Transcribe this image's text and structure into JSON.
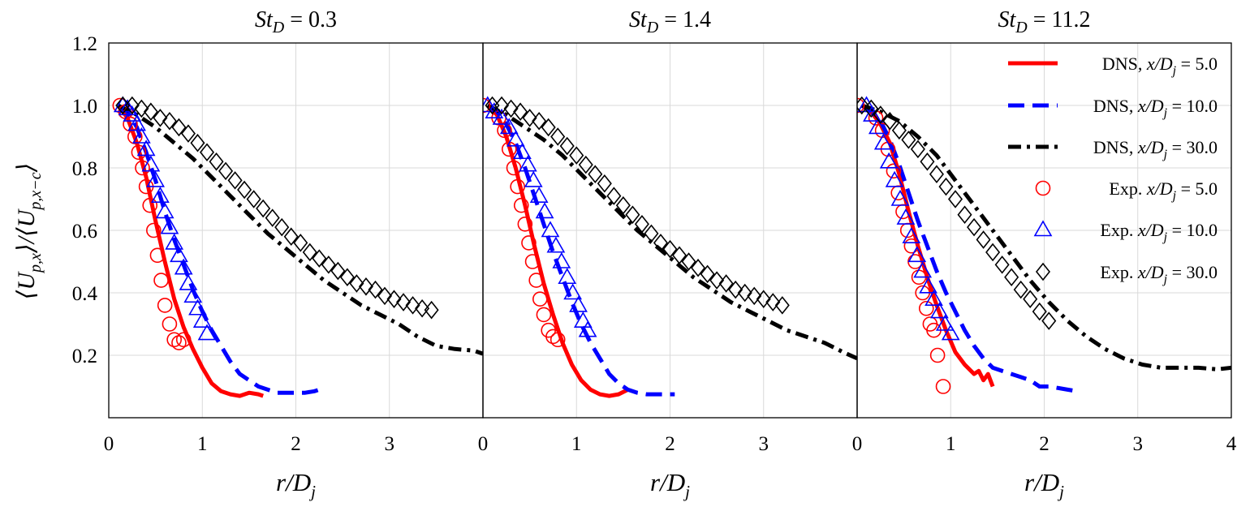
{
  "ylabel": "⟨U_{p,x}⟩/⟨U_{p,x−c}⟩",
  "legend": {
    "placement": "top-right (third panel)",
    "entries": [
      {
        "label": "DNS, x/D_j = 5.0",
        "prefix": "DNS, ",
        "var": "x/D",
        "sub": "j",
        "val": " = 5.0",
        "color": "#ff0000",
        "style": "solid"
      },
      {
        "label": "DNS, x/D_j = 10.0",
        "prefix": "DNS, ",
        "var": "x/D",
        "sub": "j",
        "val": " = 10.0",
        "color": "#0000ff",
        "style": "dashed"
      },
      {
        "label": "DNS, x/D_j = 30.0",
        "prefix": "DNS, ",
        "var": "x/D",
        "sub": "j",
        "val": " = 30.0",
        "color": "#000000",
        "style": "dashdot"
      },
      {
        "label": "Exp. x/D_j = 5.0",
        "prefix": "Exp. ",
        "var": "x/D",
        "sub": "j",
        "val": " = 5.0",
        "color": "#ff0000",
        "marker": "circle"
      },
      {
        "label": "Exp. x/D_j = 10.0",
        "prefix": "Exp. ",
        "var": "x/D",
        "sub": "j",
        "val": " = 10.0",
        "color": "#0000ff",
        "marker": "triangle"
      },
      {
        "label": "Exp. x/D_j = 30.0",
        "prefix": "Exp. ",
        "var": "x/D",
        "sub": "j",
        "val": " = 30.0",
        "color": "#000000",
        "marker": "diamond"
      }
    ]
  },
  "chart_data": [
    {
      "type": "line",
      "title": "St_D = 0.3",
      "title_var": "St",
      "title_sub": "D",
      "title_val": " = 0.3",
      "xlabel": "r/D_j",
      "xlabel_var": "r/D",
      "xlabel_sub": "j",
      "xlim": [
        0,
        4
      ],
      "ylim": [
        0,
        1.2
      ],
      "xticks": [
        "0",
        "1",
        "2",
        "3"
      ],
      "yticks": [
        "0.2",
        "0.4",
        "0.6",
        "0.8",
        "1.0",
        "1.2"
      ],
      "grid": true,
      "series": [
        {
          "kind": "dns",
          "color": "#ff0000",
          "style": "solid",
          "x": [
            0.1,
            0.2,
            0.3,
            0.4,
            0.5,
            0.6,
            0.7,
            0.8,
            0.9,
            1.0,
            1.1,
            1.2,
            1.3,
            1.4,
            1.5,
            1.6,
            1.65
          ],
          "y": [
            1.0,
            0.96,
            0.88,
            0.77,
            0.63,
            0.5,
            0.38,
            0.29,
            0.22,
            0.16,
            0.11,
            0.085,
            0.075,
            0.07,
            0.08,
            0.075,
            0.07
          ]
        },
        {
          "kind": "dns",
          "color": "#0000ff",
          "style": "dashed",
          "x": [
            0.1,
            0.2,
            0.3,
            0.4,
            0.5,
            0.6,
            0.7,
            0.8,
            0.9,
            1.0,
            1.1,
            1.2,
            1.3,
            1.4,
            1.5,
            1.6,
            1.7,
            1.8,
            1.9,
            2.0,
            2.1,
            2.2,
            2.3
          ],
          "y": [
            1.0,
            0.98,
            0.93,
            0.85,
            0.76,
            0.66,
            0.57,
            0.49,
            0.41,
            0.34,
            0.28,
            0.23,
            0.18,
            0.14,
            0.12,
            0.1,
            0.09,
            0.08,
            0.08,
            0.08,
            0.08,
            0.085,
            0.095
          ]
        },
        {
          "kind": "dns",
          "color": "#000000",
          "style": "dashdot",
          "x": [
            0.1,
            0.3,
            0.5,
            0.7,
            0.9,
            1.1,
            1.3,
            1.5,
            1.7,
            1.9,
            2.1,
            2.3,
            2.5,
            2.7,
            2.9,
            3.1,
            3.3,
            3.5,
            3.7,
            3.9,
            4.0
          ],
          "y": [
            1.0,
            0.97,
            0.93,
            0.88,
            0.83,
            0.77,
            0.71,
            0.65,
            0.59,
            0.54,
            0.49,
            0.44,
            0.4,
            0.36,
            0.33,
            0.3,
            0.26,
            0.23,
            0.22,
            0.215,
            0.205
          ]
        },
        {
          "kind": "exp",
          "color": "#ff0000",
          "marker": "circle",
          "x": [
            0.12,
            0.18,
            0.23,
            0.28,
            0.32,
            0.36,
            0.4,
            0.44,
            0.48,
            0.52,
            0.56,
            0.6,
            0.65,
            0.7,
            0.75,
            0.8
          ],
          "y": [
            1.0,
            0.98,
            0.94,
            0.9,
            0.85,
            0.8,
            0.74,
            0.68,
            0.6,
            0.52,
            0.44,
            0.36,
            0.3,
            0.25,
            0.24,
            0.25
          ]
        },
        {
          "kind": "exp",
          "color": "#0000ff",
          "marker": "triangle",
          "x": [
            0.15,
            0.2,
            0.25,
            0.3,
            0.35,
            0.4,
            0.45,
            0.5,
            0.55,
            0.6,
            0.65,
            0.7,
            0.75,
            0.8,
            0.85,
            0.9,
            0.95,
            1.0,
            1.05
          ],
          "y": [
            1.0,
            0.99,
            0.97,
            0.94,
            0.9,
            0.86,
            0.81,
            0.76,
            0.71,
            0.66,
            0.61,
            0.56,
            0.52,
            0.48,
            0.43,
            0.39,
            0.35,
            0.31,
            0.27
          ]
        },
        {
          "kind": "exp",
          "color": "#000000",
          "marker": "diamond",
          "x": [
            0.15,
            0.25,
            0.35,
            0.45,
            0.55,
            0.65,
            0.75,
            0.85,
            0.95,
            1.05,
            1.15,
            1.25,
            1.35,
            1.45,
            1.55,
            1.65,
            1.75,
            1.85,
            1.95,
            2.05,
            2.15,
            2.25,
            2.35,
            2.45,
            2.55,
            2.65,
            2.75,
            2.85,
            2.95,
            3.05,
            3.15,
            3.25,
            3.35,
            3.45
          ],
          "y": [
            1.0,
            1.0,
            0.99,
            0.98,
            0.96,
            0.95,
            0.93,
            0.91,
            0.88,
            0.85,
            0.82,
            0.79,
            0.76,
            0.73,
            0.7,
            0.67,
            0.64,
            0.61,
            0.58,
            0.56,
            0.53,
            0.51,
            0.49,
            0.47,
            0.45,
            0.43,
            0.42,
            0.41,
            0.39,
            0.38,
            0.37,
            0.36,
            0.35,
            0.345
          ]
        }
      ]
    },
    {
      "type": "line",
      "title": "St_D = 1.4",
      "title_var": "St",
      "title_sub": "D",
      "title_val": " = 1.4",
      "xlabel": "r/D_j",
      "xlabel_var": "r/D",
      "xlabel_sub": "j",
      "xlim": [
        0,
        4
      ],
      "ylim": [
        0,
        1.2
      ],
      "xticks": [
        "0",
        "1",
        "2",
        "3"
      ],
      "yticks": [],
      "grid": true,
      "series": [
        {
          "kind": "dns",
          "color": "#ff0000",
          "style": "solid",
          "x": [
            0.05,
            0.15,
            0.25,
            0.35,
            0.45,
            0.55,
            0.65,
            0.75,
            0.85,
            0.95,
            1.05,
            1.15,
            1.25,
            1.35,
            1.45,
            1.55
          ],
          "y": [
            1.0,
            0.97,
            0.9,
            0.8,
            0.68,
            0.55,
            0.43,
            0.33,
            0.24,
            0.17,
            0.12,
            0.09,
            0.075,
            0.07,
            0.075,
            0.09
          ]
        },
        {
          "kind": "dns",
          "color": "#0000ff",
          "style": "dashed",
          "x": [
            0.05,
            0.15,
            0.25,
            0.35,
            0.45,
            0.55,
            0.65,
            0.75,
            0.85,
            0.95,
            1.05,
            1.15,
            1.25,
            1.35,
            1.45,
            1.55,
            1.65,
            1.75,
            1.85,
            1.95,
            2.05
          ],
          "y": [
            1.0,
            0.98,
            0.94,
            0.88,
            0.8,
            0.71,
            0.62,
            0.53,
            0.45,
            0.37,
            0.3,
            0.24,
            0.19,
            0.14,
            0.11,
            0.09,
            0.08,
            0.075,
            0.075,
            0.075,
            0.075
          ]
        },
        {
          "kind": "dns",
          "color": "#000000",
          "style": "dashdot",
          "x": [
            0.05,
            0.25,
            0.45,
            0.65,
            0.85,
            1.05,
            1.25,
            1.45,
            1.65,
            1.85,
            2.05,
            2.25,
            2.45,
            2.65,
            2.85,
            3.05,
            3.25,
            3.45,
            3.65,
            3.85,
            4.0
          ],
          "y": [
            1.0,
            0.97,
            0.93,
            0.89,
            0.84,
            0.78,
            0.72,
            0.66,
            0.6,
            0.55,
            0.5,
            0.45,
            0.41,
            0.37,
            0.34,
            0.31,
            0.28,
            0.26,
            0.24,
            0.21,
            0.19
          ]
        },
        {
          "kind": "exp",
          "color": "#ff0000",
          "marker": "circle",
          "x": [
            0.0,
            0.17,
            0.23,
            0.28,
            0.33,
            0.37,
            0.41,
            0.45,
            0.49,
            0.53,
            0.57,
            0.61,
            0.65,
            0.7,
            0.75,
            0.8
          ],
          "y": [
            1.0,
            0.96,
            0.92,
            0.86,
            0.8,
            0.74,
            0.68,
            0.62,
            0.56,
            0.5,
            0.44,
            0.38,
            0.33,
            0.28,
            0.26,
            0.25
          ]
        },
        {
          "kind": "exp",
          "color": "#0000ff",
          "marker": "triangle",
          "x": [
            0.05,
            0.12,
            0.2,
            0.28,
            0.35,
            0.42,
            0.48,
            0.54,
            0.6,
            0.66,
            0.72,
            0.78,
            0.84,
            0.9,
            0.96,
            1.02,
            1.07,
            1.12
          ],
          "y": [
            1.0,
            0.98,
            0.96,
            0.93,
            0.89,
            0.85,
            0.81,
            0.76,
            0.71,
            0.66,
            0.6,
            0.55,
            0.5,
            0.45,
            0.4,
            0.36,
            0.31,
            0.28
          ]
        },
        {
          "kind": "exp",
          "color": "#000000",
          "marker": "diamond",
          "x": [
            0.1,
            0.2,
            0.3,
            0.4,
            0.5,
            0.6,
            0.7,
            0.8,
            0.9,
            1.0,
            1.1,
            1.2,
            1.3,
            1.4,
            1.5,
            1.6,
            1.7,
            1.8,
            1.9,
            2.0,
            2.1,
            2.2,
            2.3,
            2.4,
            2.5,
            2.6,
            2.7,
            2.8,
            2.9,
            3.0,
            3.1,
            3.2
          ],
          "y": [
            1.0,
            1.0,
            0.99,
            0.98,
            0.96,
            0.95,
            0.93,
            0.9,
            0.87,
            0.84,
            0.81,
            0.78,
            0.75,
            0.71,
            0.68,
            0.65,
            0.62,
            0.59,
            0.56,
            0.54,
            0.52,
            0.5,
            0.48,
            0.46,
            0.44,
            0.43,
            0.41,
            0.4,
            0.39,
            0.38,
            0.37,
            0.36
          ]
        }
      ]
    },
    {
      "type": "line",
      "title": "St_D = 11.2",
      "title_var": "St",
      "title_sub": "D",
      "title_val": " = 11.2",
      "xlabel": "r/D_j",
      "xlabel_var": "r/D",
      "xlabel_sub": "j",
      "xlim": [
        0,
        4
      ],
      "ylim": [
        0,
        1.2
      ],
      "xticks": [
        "0",
        "1",
        "2",
        "3",
        "4"
      ],
      "yticks": [],
      "grid": true,
      "series": [
        {
          "kind": "dns",
          "color": "#ff0000",
          "style": "solid",
          "x": [
            0.05,
            0.15,
            0.25,
            0.35,
            0.45,
            0.55,
            0.65,
            0.75,
            0.85,
            0.95,
            1.05,
            1.15,
            1.25,
            1.3,
            1.35,
            1.4,
            1.45
          ],
          "y": [
            1.0,
            0.98,
            0.94,
            0.88,
            0.78,
            0.66,
            0.55,
            0.45,
            0.36,
            0.28,
            0.21,
            0.17,
            0.14,
            0.15,
            0.12,
            0.14,
            0.1
          ]
        },
        {
          "kind": "dns",
          "color": "#0000ff",
          "style": "dashed",
          "x": [
            0.05,
            0.15,
            0.25,
            0.35,
            0.45,
            0.55,
            0.65,
            0.75,
            0.85,
            0.95,
            1.05,
            1.15,
            1.25,
            1.35,
            1.45,
            1.55,
            1.65,
            1.75,
            1.85,
            1.95,
            2.05,
            2.15,
            2.25,
            2.35
          ],
          "y": [
            1.0,
            0.98,
            0.95,
            0.89,
            0.81,
            0.72,
            0.63,
            0.55,
            0.47,
            0.4,
            0.34,
            0.28,
            0.23,
            0.19,
            0.16,
            0.15,
            0.14,
            0.13,
            0.12,
            0.1,
            0.1,
            0.095,
            0.09,
            0.085
          ]
        },
        {
          "kind": "dns",
          "color": "#000000",
          "style": "dashdot",
          "x": [
            0.05,
            0.25,
            0.45,
            0.65,
            0.85,
            1.05,
            1.25,
            1.45,
            1.65,
            1.85,
            2.05,
            2.25,
            2.45,
            2.65,
            2.85,
            3.05,
            3.25,
            3.45,
            3.65,
            3.85,
            4.0
          ],
          "y": [
            1.0,
            0.98,
            0.95,
            0.9,
            0.84,
            0.76,
            0.68,
            0.6,
            0.52,
            0.44,
            0.37,
            0.31,
            0.26,
            0.22,
            0.19,
            0.17,
            0.16,
            0.16,
            0.16,
            0.155,
            0.16
          ]
        },
        {
          "kind": "exp",
          "color": "#ff0000",
          "marker": "circle",
          "x": [
            0.0,
            0.2,
            0.27,
            0.33,
            0.39,
            0.44,
            0.49,
            0.54,
            0.58,
            0.62,
            0.66,
            0.7,
            0.74,
            0.78,
            0.82,
            0.86,
            0.92
          ],
          "y": [
            1.0,
            0.96,
            0.92,
            0.86,
            0.79,
            0.72,
            0.66,
            0.6,
            0.55,
            0.5,
            0.45,
            0.4,
            0.35,
            0.3,
            0.28,
            0.2,
            0.1
          ]
        },
        {
          "kind": "exp",
          "color": "#0000ff",
          "marker": "triangle",
          "x": [
            0.1,
            0.16,
            0.22,
            0.28,
            0.34,
            0.4,
            0.46,
            0.52,
            0.58,
            0.64,
            0.7,
            0.76,
            0.82,
            0.88,
            0.94,
            1.0
          ],
          "y": [
            1.0,
            0.97,
            0.93,
            0.88,
            0.82,
            0.76,
            0.7,
            0.64,
            0.58,
            0.52,
            0.47,
            0.42,
            0.38,
            0.34,
            0.3,
            0.27
          ]
        },
        {
          "kind": "exp",
          "color": "#000000",
          "marker": "diamond",
          "x": [
            0.05,
            0.15,
            0.25,
            0.35,
            0.45,
            0.55,
            0.65,
            0.75,
            0.85,
            0.95,
            1.05,
            1.15,
            1.25,
            1.35,
            1.45,
            1.55,
            1.65,
            1.75,
            1.85,
            1.95,
            2.05
          ],
          "y": [
            1.0,
            0.99,
            0.97,
            0.95,
            0.92,
            0.89,
            0.86,
            0.82,
            0.78,
            0.74,
            0.7,
            0.65,
            0.61,
            0.57,
            0.53,
            0.49,
            0.45,
            0.41,
            0.38,
            0.34,
            0.31
          ]
        }
      ]
    }
  ]
}
